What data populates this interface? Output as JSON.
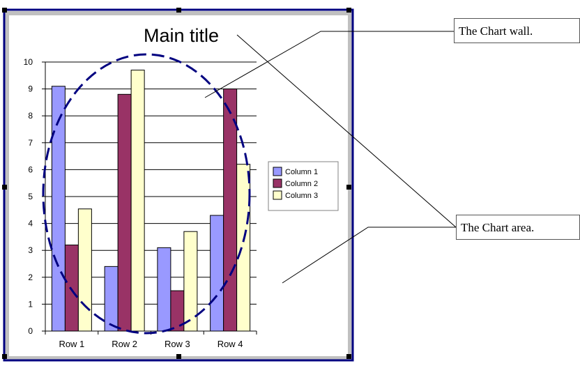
{
  "colors": {
    "series": [
      "#9999ff",
      "#993366",
      "#ffffcc"
    ],
    "frame": "#000080",
    "ellipse": "#000080",
    "area_bg": "#ffffff",
    "border_gray": "#c0c0c0"
  },
  "callouts": {
    "wall": "The Chart wall.",
    "area": "The Chart area."
  },
  "chart_data": {
    "type": "bar",
    "title": "Main title",
    "categories": [
      "Row 1",
      "Row 2",
      "Row 3",
      "Row 4"
    ],
    "series": [
      {
        "name": "Column 1",
        "values": [
          9.1,
          2.4,
          3.1,
          4.3
        ]
      },
      {
        "name": "Column 2",
        "values": [
          3.2,
          8.8,
          1.5,
          9.0
        ]
      },
      {
        "name": "Column 3",
        "values": [
          4.54,
          9.7,
          3.7,
          6.2
        ]
      }
    ],
    "ylim": [
      0,
      10
    ],
    "yticks": [
      "0",
      "1",
      "2",
      "3",
      "4",
      "5",
      "6",
      "7",
      "8",
      "9",
      "10"
    ],
    "grid": true,
    "legend": "right"
  }
}
